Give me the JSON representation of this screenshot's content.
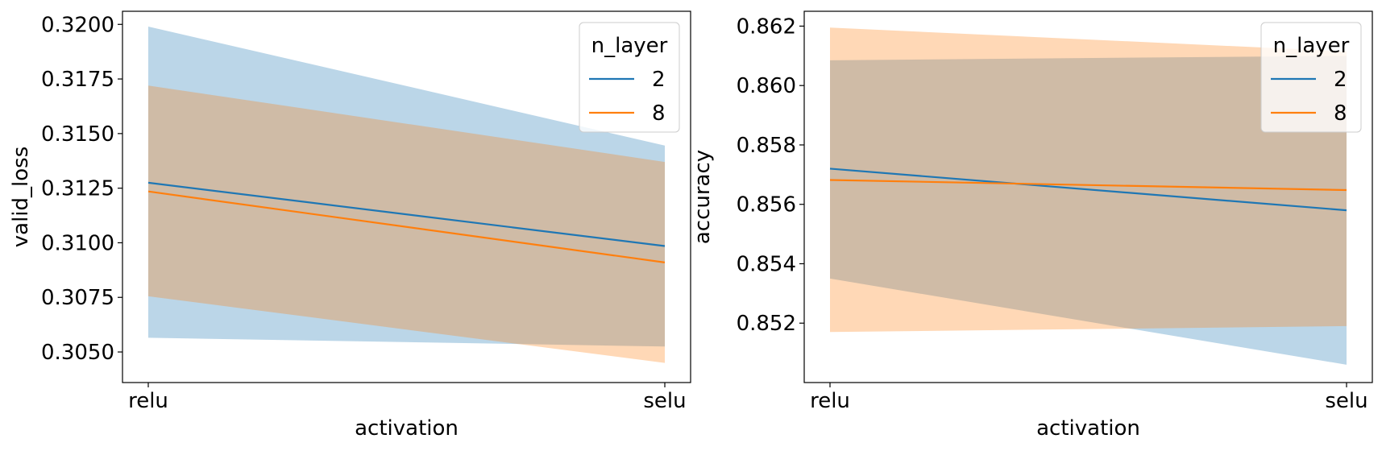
{
  "chart_data": [
    {
      "type": "line",
      "categories": [
        "relu",
        "selu"
      ],
      "xlabel": "activation",
      "ylabel": "valid_loss",
      "ylim": [
        0.3036,
        0.3206
      ],
      "yticks": [
        "0.3050",
        "0.3075",
        "0.3100",
        "0.3125",
        "0.3150",
        "0.3175",
        "0.3200"
      ],
      "legend": {
        "title": "n_layer",
        "placement": "upper right"
      },
      "series": [
        {
          "name": "2",
          "color": "#1f77b4",
          "band_color": "#1f77b4",
          "values": [
            0.31275,
            0.30985
          ],
          "lower": [
            0.30565,
            0.30525
          ],
          "upper": [
            0.3199,
            0.31445
          ]
        },
        {
          "name": "8",
          "color": "#ff7f0e",
          "band_color": "#ff7f0e",
          "values": [
            0.31235,
            0.3091
          ],
          "lower": [
            0.30755,
            0.3045
          ],
          "upper": [
            0.3172,
            0.3137
          ]
        }
      ]
    },
    {
      "type": "line",
      "categories": [
        "relu",
        "selu"
      ],
      "xlabel": "activation",
      "ylabel": "accuracy",
      "ylim": [
        0.85,
        0.8625
      ],
      "yticks": [
        "0.852",
        "0.854",
        "0.856",
        "0.858",
        "0.860",
        "0.862"
      ],
      "legend": {
        "title": "n_layer",
        "placement": "upper right"
      },
      "series": [
        {
          "name": "2",
          "color": "#1f77b4",
          "band_color": "#1f77b4",
          "values": [
            0.8572,
            0.8558
          ],
          "lower": [
            0.8535,
            0.8506
          ],
          "upper": [
            0.86085,
            0.861
          ]
        },
        {
          "name": "8",
          "color": "#ff7f0e",
          "band_color": "#ff7f0e",
          "values": [
            0.85682,
            0.85648
          ],
          "lower": [
            0.8517,
            0.8519
          ],
          "upper": [
            0.86195,
            0.86115
          ]
        }
      ]
    }
  ]
}
